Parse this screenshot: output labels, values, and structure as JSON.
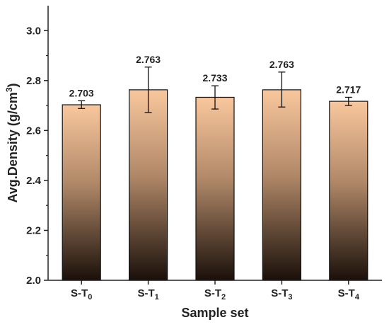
{
  "chart_data": {
    "type": "bar",
    "categories": [
      "S-T0",
      "S-T1",
      "S-T2",
      "S-T3",
      "S-T4"
    ],
    "category_labels": [
      {
        "base": "S-T",
        "sub": "0"
      },
      {
        "base": "S-T",
        "sub": "1"
      },
      {
        "base": "S-T",
        "sub": "2"
      },
      {
        "base": "S-T",
        "sub": "3"
      },
      {
        "base": "S-T",
        "sub": "4"
      }
    ],
    "values": [
      2.703,
      2.763,
      2.733,
      2.763,
      2.717
    ],
    "value_labels": [
      "2.703",
      "2.763",
      "2.733",
      "2.763",
      "2.717"
    ],
    "error_low": [
      2.688,
      2.672,
      2.686,
      2.694,
      2.7
    ],
    "error_high": [
      2.719,
      2.854,
      2.779,
      2.834,
      2.733
    ],
    "xlabel": "Sample set",
    "ylabel": {
      "base": "Avg.Density (g/cm",
      "sup": "3",
      "tail": ")"
    },
    "ylim": [
      2.0,
      3.1
    ],
    "yticks": [
      2.0,
      2.2,
      2.4,
      2.6,
      2.8,
      3.0
    ],
    "ytick_labels": [
      "2.0",
      "2.2",
      "2.4",
      "2.6",
      "2.8",
      "3.0"
    ],
    "grid": false,
    "colors": {
      "bar_top": "#f9c79d",
      "bar_bottom": "#1a100a",
      "bar_stroke": "#111111",
      "axis": "#222222"
    }
  }
}
